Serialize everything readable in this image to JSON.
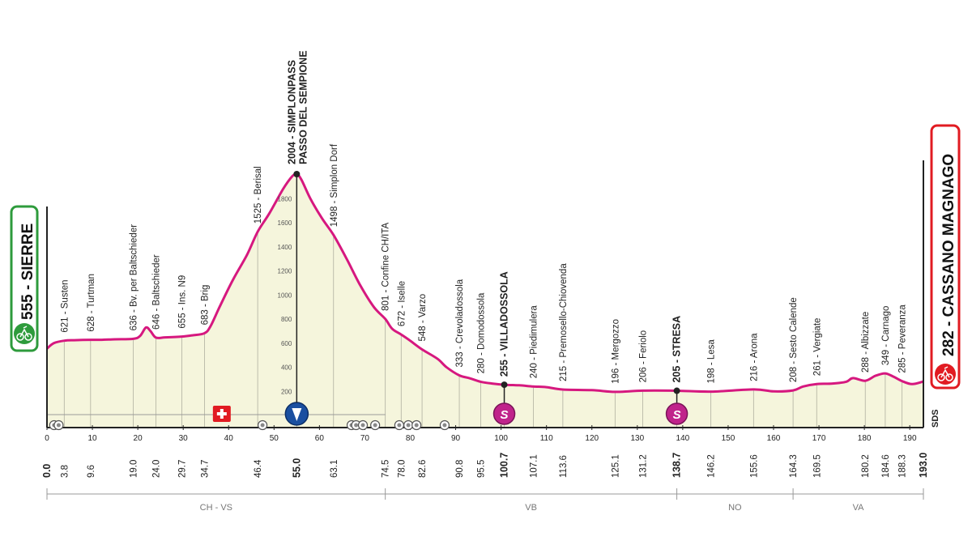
{
  "chart_data": {
    "type": "area",
    "xlim": [
      0,
      193
    ],
    "ylim": [
      0,
      2000
    ],
    "grid": false,
    "colors": {
      "profile_line": "#d6187f",
      "fill": "#f5f5dc",
      "start_badge": "#2e9b3c",
      "finish_badge": "#e11b22",
      "sprint_badge": "#c0238b"
    },
    "start": {
      "label": "555 - SIERRE",
      "icon": "cyclist-icon"
    },
    "finish": {
      "label": "282 - CASSANO MAGNAGO",
      "icon": "finish-cyclist-icon"
    },
    "y_ticks": [
      "200",
      "400",
      "600",
      "800",
      "1000",
      "1200",
      "1400",
      "1600",
      "1800"
    ],
    "x_ticks": [
      "0",
      "10",
      "20",
      "30",
      "40",
      "50",
      "60",
      "70",
      "80",
      "90",
      "100",
      "110",
      "120",
      "130",
      "140",
      "150",
      "160",
      "170",
      "180",
      "190"
    ],
    "profile": {
      "x": [
        0,
        1.5,
        3.8,
        6,
        9.6,
        12,
        15,
        19.0,
        20.5,
        21.8,
        22.8,
        24.0,
        26,
        29.7,
        32,
        34.7,
        36,
        38,
        41,
        44,
        46.4,
        49,
        52,
        54,
        55.0,
        56,
        58,
        60.5,
        63.1,
        66,
        69,
        72,
        74.5,
        76,
        78.0,
        80,
        82.6,
        86,
        88,
        90.8,
        93,
        95.5,
        98,
        100.7,
        104,
        107.1,
        110,
        113.6,
        120,
        125.1,
        131.2,
        138.7,
        146.2,
        155.6,
        160,
        164.3,
        166.5,
        169.5,
        173,
        176,
        177.5,
        180.2,
        182.5,
        184.6,
        186.5,
        188.3,
        190.5,
        193.0
      ],
      "y": [
        555,
        600,
        621,
        625,
        628,
        628,
        632,
        636,
        660,
        730,
        700,
        646,
        648,
        655,
        665,
        683,
        740,
        900,
        1130,
        1330,
        1525,
        1680,
        1880,
        1985,
        2004,
        1960,
        1800,
        1640,
        1498,
        1300,
        1080,
        900,
        801,
        720,
        672,
        620,
        548,
        470,
        400,
        333,
        310,
        280,
        265,
        255,
        250,
        240,
        235,
        215,
        210,
        196,
        206,
        205,
        198,
        216,
        200,
        208,
        240,
        261,
        265,
        280,
        310,
        288,
        330,
        349,
        320,
        285,
        260,
        282
      ]
    },
    "points": [
      {
        "x": 3.8,
        "label": "621 - Susten"
      },
      {
        "x": 9.6,
        "label": "628 - Turtman"
      },
      {
        "x": 19.0,
        "label": "636 - Bv. per Baltschieder"
      },
      {
        "x": 24.0,
        "label": "646 - Baltschieder"
      },
      {
        "x": 29.7,
        "label": "655 - Ins. N9"
      },
      {
        "x": 34.7,
        "label": "683 - Brig"
      },
      {
        "x": 46.4,
        "label": "1525 - Berisal"
      },
      {
        "x": 55.0,
        "label": "2004 - SIMPLONPASS\nPASSO DEL SEMPIONE",
        "bold": true,
        "peak": true
      },
      {
        "x": 63.1,
        "label": "1498 - Simplon Dorf"
      },
      {
        "x": 74.5,
        "label": "801 - Confine CH/ITA"
      },
      {
        "x": 78.0,
        "label": "672 - Iselle"
      },
      {
        "x": 82.6,
        "label": "548 - Varzo"
      },
      {
        "x": 90.8,
        "label": "333 - Crevoladossola"
      },
      {
        "x": 95.5,
        "label": "280 - Domodossola"
      },
      {
        "x": 100.7,
        "label": "255 - VILLADOSSOLA",
        "bold": true,
        "sprint": true
      },
      {
        "x": 107.1,
        "label": "240 - Piedimulera"
      },
      {
        "x": 113.6,
        "label": "215 - Premosello-Chiovenda"
      },
      {
        "x": 125.1,
        "label": "196 - Mergozzo"
      },
      {
        "x": 131.2,
        "label": "206 - Feriolo"
      },
      {
        "x": 138.7,
        "label": "205 - STRESA",
        "bold": true,
        "sprint": true
      },
      {
        "x": 146.2,
        "label": "198 - Lesa"
      },
      {
        "x": 155.6,
        "label": "216 - Arona"
      },
      {
        "x": 164.3,
        "label": "208 - Sesto Calende"
      },
      {
        "x": 169.5,
        "label": "261 - Vergiate"
      },
      {
        "x": 180.2,
        "label": "288 - Albizzate"
      },
      {
        "x": 184.6,
        "label": "349 - Carnago"
      },
      {
        "x": 188.3,
        "label": "285 - Peveranza"
      }
    ],
    "km_labels": [
      {
        "x": 0,
        "label": "0.0",
        "bold": true
      },
      {
        "x": 3.8,
        "label": "3.8"
      },
      {
        "x": 9.6,
        "label": "9.6"
      },
      {
        "x": 19.0,
        "label": "19.0"
      },
      {
        "x": 24.0,
        "label": "24.0"
      },
      {
        "x": 29.7,
        "label": "29.7"
      },
      {
        "x": 34.7,
        "label": "34.7"
      },
      {
        "x": 46.4,
        "label": "46.4"
      },
      {
        "x": 55.0,
        "label": "55.0",
        "bold": true
      },
      {
        "x": 63.1,
        "label": "63.1"
      },
      {
        "x": 74.5,
        "label": "74.5"
      },
      {
        "x": 78.0,
        "label": "78.0"
      },
      {
        "x": 82.6,
        "label": "82.6"
      },
      {
        "x": 90.8,
        "label": "90.8"
      },
      {
        "x": 95.5,
        "label": "95.5"
      },
      {
        "x": 100.7,
        "label": "100.7",
        "bold": true
      },
      {
        "x": 107.1,
        "label": "107.1"
      },
      {
        "x": 113.6,
        "label": "113.6"
      },
      {
        "x": 125.1,
        "label": "125.1"
      },
      {
        "x": 131.2,
        "label": "131.2"
      },
      {
        "x": 138.7,
        "label": "138.7",
        "bold": true
      },
      {
        "x": 146.2,
        "label": "146.2"
      },
      {
        "x": 155.6,
        "label": "155.6"
      },
      {
        "x": 164.3,
        "label": "164.3"
      },
      {
        "x": 169.5,
        "label": "169.5"
      },
      {
        "x": 180.2,
        "label": "180.2"
      },
      {
        "x": 184.6,
        "label": "184.6"
      },
      {
        "x": 188.3,
        "label": "188.3"
      },
      {
        "x": 193.0,
        "label": "193.0",
        "bold": true
      }
    ],
    "regions": [
      {
        "from": 0,
        "to": 74.5,
        "label": "CH - VS"
      },
      {
        "from": 74.5,
        "to": 138.7,
        "label": "VB"
      },
      {
        "from": 138.7,
        "to": 164.3,
        "label": "NO"
      },
      {
        "from": 164.3,
        "to": 193.0,
        "label": "VA"
      }
    ],
    "markers": [
      {
        "x": 38.5,
        "type": "swiss-flag-icon"
      },
      {
        "x": 55.0,
        "type": "gpm-icon"
      },
      {
        "x": 100.7,
        "type": "sprint-icon",
        "label": "S"
      },
      {
        "x": 138.7,
        "type": "sprint-icon",
        "label": "S"
      }
    ],
    "lower_dots": [
      0.5,
      1.5,
      46.4,
      66,
      67,
      68.5,
      71.2,
      76.5,
      78.5,
      80.3,
      86.5
    ],
    "sds_label": "SDS"
  }
}
